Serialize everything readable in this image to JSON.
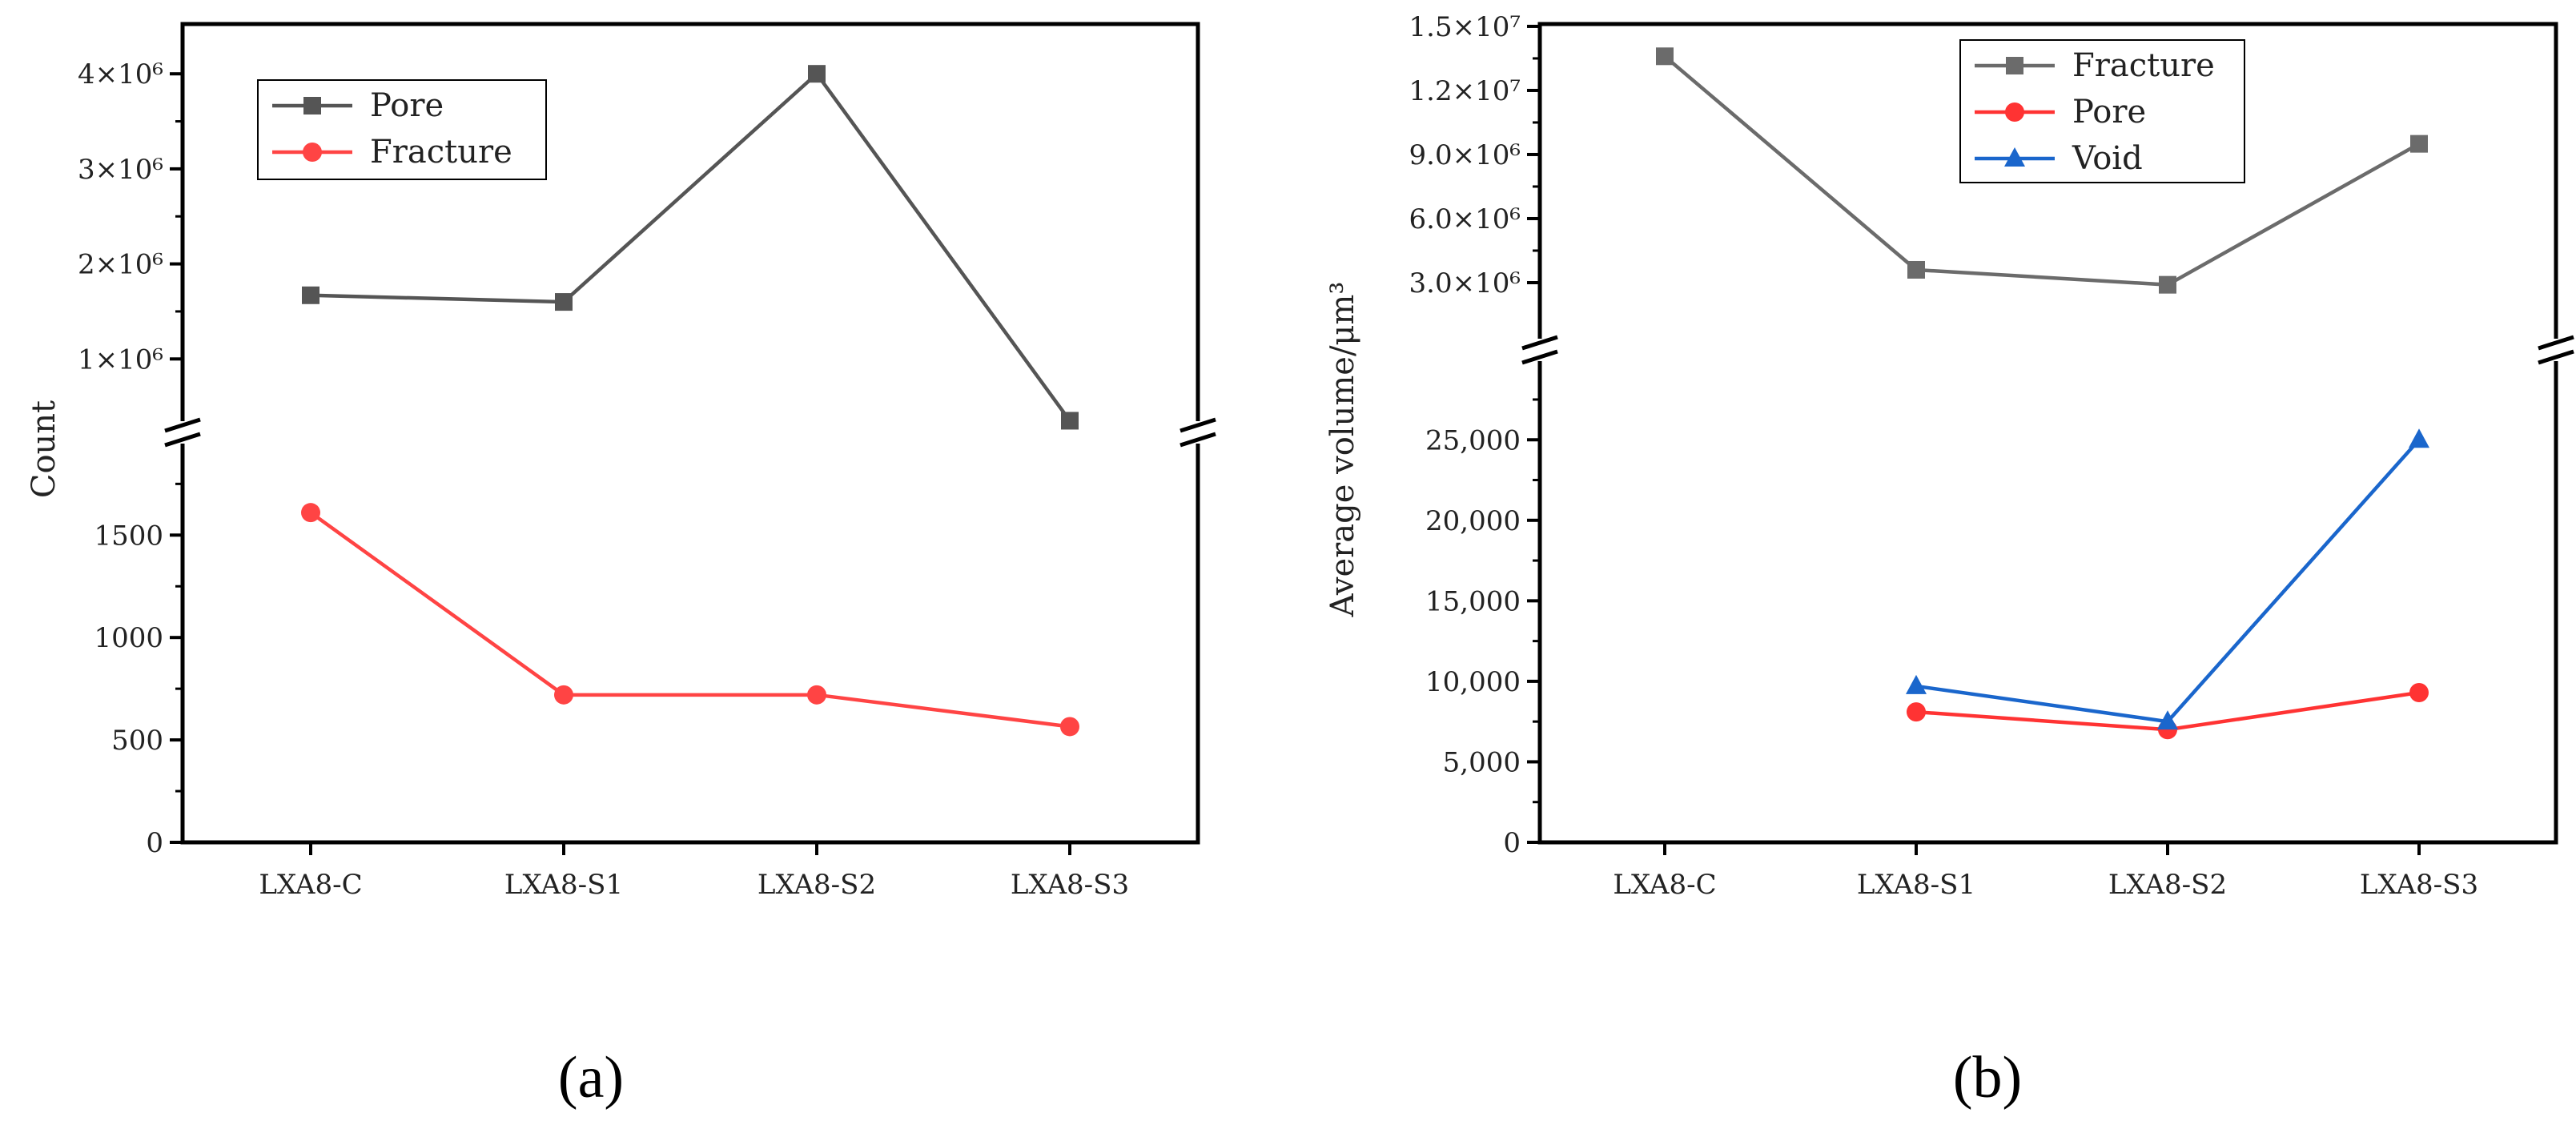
{
  "chart_data": [
    {
      "type": "line",
      "panel_label": "(a)",
      "categories": [
        "LXA8-C",
        "LXA8-S1",
        "LXA8-S2",
        "LXA8-S3"
      ],
      "ylabel": "Count",
      "axis_break": true,
      "lower_ylim": [
        0,
        2000
      ],
      "lower_ticks": [
        "0",
        "500",
        "1000",
        "1500"
      ],
      "upper_ylim": [
        300000,
        4400000
      ],
      "upper_ticks": [
        "1×10⁶",
        "2×10⁶",
        "3×10⁶",
        "4×10⁶"
      ],
      "legend_position": "top-left",
      "series": [
        {
          "name": "Pore",
          "color": "#555555",
          "marker": "square",
          "segment": "upper",
          "values": [
            1670000,
            1600000,
            4000000,
            350000
          ]
        },
        {
          "name": "Fracture",
          "color": "#ff4444",
          "marker": "circle",
          "segment": "lower",
          "values": [
            1610,
            720,
            720,
            565
          ]
        }
      ]
    },
    {
      "type": "line",
      "panel_label": "(b)",
      "categories": [
        "LXA8-C",
        "LXA8-S1",
        "LXA8-S2",
        "LXA8-S3"
      ],
      "ylabel": "Average volume/μm³",
      "axis_break": true,
      "lower_ylim": [
        0,
        28000
      ],
      "lower_ticks": [
        "0",
        "5,000",
        "10,000",
        "15,000",
        "20,000",
        "25,000"
      ],
      "upper_ylim": [
        600000,
        15000000
      ],
      "upper_ticks": [
        "3.0×10⁶",
        "6.0×10⁶",
        "9.0×10⁶",
        "1.2×10⁷",
        "1.5×10⁷"
      ],
      "legend_position": "top-center",
      "series": [
        {
          "name": "Fracture",
          "color": "#6b6b6b",
          "marker": "square",
          "segment": "upper",
          "values": [
            13600000,
            3600000,
            2900000,
            9500000
          ]
        },
        {
          "name": "Pore",
          "color": "#ff3333",
          "marker": "circle",
          "segment": "lower",
          "values": [
            null,
            8100,
            7000,
            9300
          ]
        },
        {
          "name": "Void",
          "color": "#1a66cc",
          "marker": "triangle",
          "segment": "lower",
          "values": [
            null,
            9700,
            7500,
            25000
          ]
        }
      ]
    }
  ]
}
